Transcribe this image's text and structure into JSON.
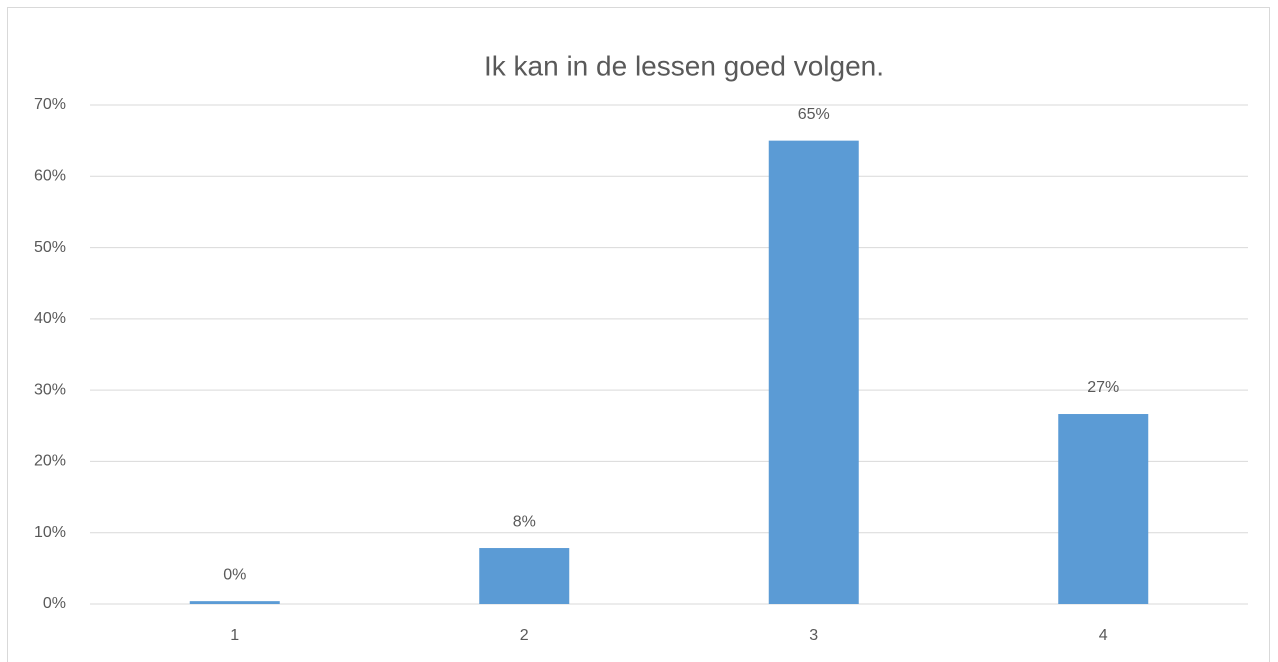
{
  "chart_data": {
    "type": "bar",
    "title": "Ik kan in de lessen goed volgen.",
    "categories": [
      "1",
      "2",
      "3",
      "4"
    ],
    "values": [
      0.4,
      7.85,
      65,
      26.65
    ],
    "value_labels": [
      "0%",
      "8%",
      "65%",
      "27%"
    ],
    "color": "#5b9bd5",
    "ylim": [
      0,
      70
    ],
    "yticks": [
      {
        "value": 0,
        "label": "0%"
      },
      {
        "value": 10,
        "label": "10%"
      },
      {
        "value": 20,
        "label": "20%"
      },
      {
        "value": 30,
        "label": "30%"
      },
      {
        "value": 40,
        "label": "40%"
      },
      {
        "value": 50,
        "label": "50%"
      },
      {
        "value": 60,
        "label": "60%"
      },
      {
        "value": 70,
        "label": "70%"
      }
    ],
    "grid": true
  }
}
